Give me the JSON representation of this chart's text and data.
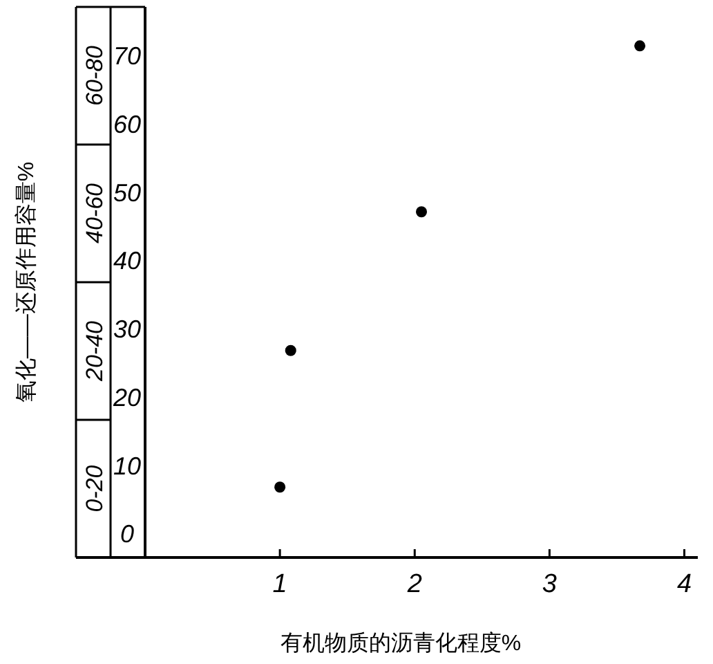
{
  "chart_data": {
    "type": "scatter",
    "xlabel": "有机物质的沥青化程度%",
    "ylabel": "氧化——还原作用容量%",
    "x": [
      1.0,
      1.08,
      2.05,
      3.67
    ],
    "series": [
      {
        "color": "#000000",
        "values": [
          6.7,
          26.7,
          47,
          71.3
        ]
      }
    ],
    "marker": "circle",
    "grid": false,
    "xlim": [
      0,
      4.1
    ],
    "xticks": [
      1,
      2,
      3,
      4
    ],
    "ylim": [
      -3.6,
      77
    ],
    "yticks": [
      0,
      10,
      20,
      30,
      40,
      50,
      60,
      70
    ],
    "annotations": [
      "0-20",
      "20-40",
      "40-60",
      "60-80"
    ]
  }
}
